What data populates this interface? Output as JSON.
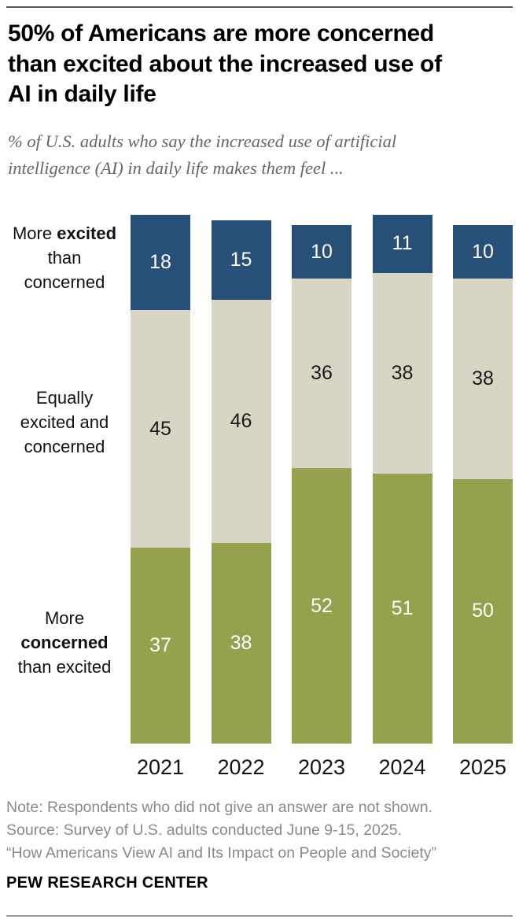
{
  "header": {
    "title_lines": [
      "50% of Americans are more concerned",
      "than excited about the increased use of",
      "AI in daily life"
    ],
    "subtitle_lines": [
      "% of U.S. adults who say the increased use of artificial",
      "intelligence (AI) in daily life makes them feel ..."
    ]
  },
  "row_labels": {
    "excited": {
      "pre": "More ",
      "bold": "excited",
      "line2": "than",
      "line3": "concerned"
    },
    "equally": {
      "line1": "Equally",
      "line2": "excited and",
      "line3": "concerned"
    },
    "concerned": {
      "line1": "More",
      "bold": "concerned",
      "line3": "than excited"
    }
  },
  "chart_data": {
    "type": "bar",
    "stacked": true,
    "orientation": "vertical",
    "title": "50% of Americans are more concerned than excited about the increased use of AI in daily life",
    "subtitle": "% of U.S. adults who say the increased use of artificial intelligence (AI) in daily life makes them feel ...",
    "categories": [
      "2021",
      "2022",
      "2023",
      "2024",
      "2025"
    ],
    "series": [
      {
        "name": "More excited than concerned",
        "color": "#265077",
        "label_color": "#ffffff",
        "values": [
          18,
          15,
          10,
          11,
          10
        ]
      },
      {
        "name": "Equally excited and concerned",
        "color": "#d9d5c4",
        "label_color": "#1a1a1a",
        "values": [
          45,
          46,
          36,
          38,
          38
        ]
      },
      {
        "name": "More concerned than excited",
        "color": "#95a14c",
        "label_color": "#ffffff",
        "values": [
          37,
          38,
          52,
          51,
          50
        ]
      }
    ],
    "value_unit": "percent",
    "ylim": [
      0,
      100
    ],
    "grid": false,
    "legend_position": "left-row-labels",
    "xlabel": "",
    "ylabel": ""
  },
  "footer": {
    "note": "Note: Respondents who did not give an answer are not shown.",
    "source": "Source: Survey of U.S. adults conducted June 9-15, 2025.",
    "quote": "“How Americans View AI and Its Impact on People and Society”",
    "brand": "PEW RESEARCH CENTER"
  }
}
